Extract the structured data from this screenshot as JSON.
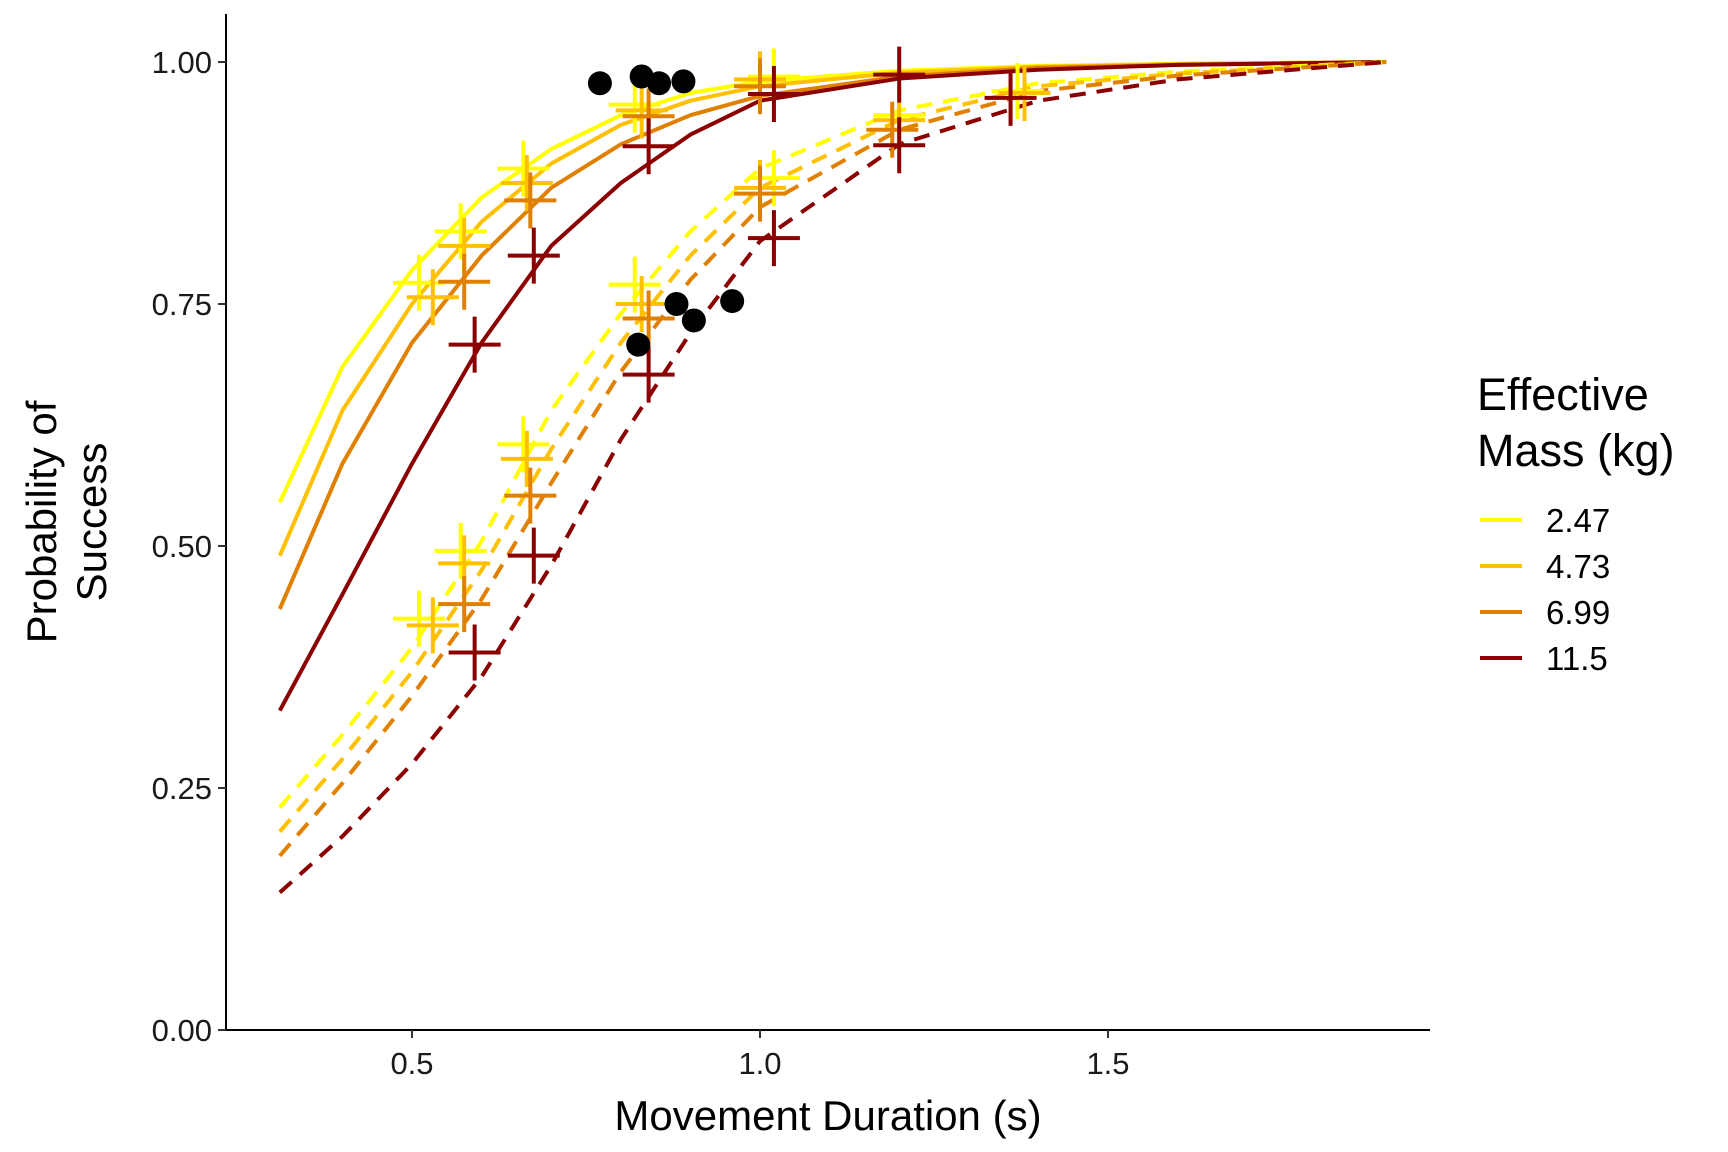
{
  "chart_data": {
    "type": "line",
    "xlabel": "Movement Duration (s)",
    "ylabel_lines": [
      "Probability of",
      "Success"
    ],
    "xlim": [
      0.235,
      1.9
    ],
    "ylim": [
      0.0,
      1.05
    ],
    "x_ticks": [
      0.5,
      1.0,
      1.5
    ],
    "x_tick_labels": [
      "0.5",
      "1.0",
      "1.5"
    ],
    "y_ticks": [
      0.0,
      0.25,
      0.5,
      0.75,
      1.0
    ],
    "y_tick_labels": [
      "0.00",
      "0.25",
      "0.50",
      "0.75",
      "1.00"
    ],
    "grid": false,
    "legend": {
      "title_lines": [
        "Effective",
        "Mass (kg)"
      ],
      "placement": "right",
      "entries": [
        {
          "label": "2.47",
          "color": "#FFFF00"
        },
        {
          "label": "4.73",
          "color": "#FFC000"
        },
        {
          "label": "6.99",
          "color": "#E08000"
        },
        {
          "label": "11.5",
          "color": "#8B0000"
        }
      ]
    },
    "series": [
      {
        "mass": "2.47",
        "style": "solid",
        "color": "#FFFF00",
        "x": [
          0.31,
          0.4,
          0.5,
          0.6,
          0.7,
          0.8,
          0.9,
          1.0,
          1.2,
          1.4,
          1.6,
          1.9
        ],
        "y": [
          0.545,
          0.685,
          0.785,
          0.86,
          0.91,
          0.945,
          0.968,
          0.98,
          0.991,
          0.996,
          0.998,
          1.0
        ]
      },
      {
        "mass": "4.73",
        "style": "solid",
        "color": "#FFC000",
        "x": [
          0.31,
          0.4,
          0.5,
          0.6,
          0.7,
          0.8,
          0.9,
          1.0,
          1.2,
          1.4,
          1.6,
          1.9
        ],
        "y": [
          0.49,
          0.64,
          0.75,
          0.835,
          0.895,
          0.935,
          0.96,
          0.975,
          0.989,
          0.995,
          0.998,
          1.0
        ]
      },
      {
        "mass": "6.99",
        "style": "solid",
        "color": "#E08000",
        "x": [
          0.31,
          0.4,
          0.5,
          0.6,
          0.7,
          0.8,
          0.9,
          1.0,
          1.2,
          1.4,
          1.6,
          1.9
        ],
        "y": [
          0.435,
          0.585,
          0.71,
          0.8,
          0.87,
          0.915,
          0.945,
          0.965,
          0.985,
          0.994,
          0.997,
          1.0
        ]
      },
      {
        "mass": "11.5",
        "style": "solid",
        "color": "#8B0000",
        "x": [
          0.31,
          0.4,
          0.5,
          0.6,
          0.7,
          0.8,
          0.9,
          1.0,
          1.2,
          1.4,
          1.6,
          1.9
        ],
        "y": [
          0.33,
          0.45,
          0.585,
          0.71,
          0.81,
          0.875,
          0.925,
          0.96,
          0.983,
          0.992,
          0.997,
          1.0
        ]
      },
      {
        "mass": "2.47",
        "style": "dashed",
        "color": "#FFFF00",
        "x": [
          0.31,
          0.4,
          0.5,
          0.6,
          0.7,
          0.8,
          0.9,
          1.0,
          1.2,
          1.4,
          1.6,
          1.9
        ],
        "y": [
          0.23,
          0.305,
          0.395,
          0.505,
          0.64,
          0.74,
          0.825,
          0.89,
          0.95,
          0.978,
          0.99,
          1.0
        ]
      },
      {
        "mass": "4.73",
        "style": "dashed",
        "color": "#FFC000",
        "x": [
          0.31,
          0.4,
          0.5,
          0.6,
          0.7,
          0.8,
          0.9,
          1.0,
          1.2,
          1.4,
          1.6,
          1.9
        ],
        "y": [
          0.205,
          0.28,
          0.37,
          0.475,
          0.6,
          0.71,
          0.8,
          0.87,
          0.94,
          0.975,
          0.988,
          1.0
        ]
      },
      {
        "mass": "6.99",
        "style": "dashed",
        "color": "#E08000",
        "x": [
          0.31,
          0.4,
          0.5,
          0.6,
          0.7,
          0.8,
          0.9,
          1.0,
          1.2,
          1.4,
          1.6,
          1.9
        ],
        "y": [
          0.18,
          0.255,
          0.345,
          0.445,
          0.565,
          0.68,
          0.775,
          0.85,
          0.93,
          0.97,
          0.986,
          1.0
        ]
      },
      {
        "mass": "11.5",
        "style": "dashed",
        "color": "#8B0000",
        "x": [
          0.31,
          0.4,
          0.5,
          0.6,
          0.7,
          0.8,
          0.9,
          1.0,
          1.2,
          1.4,
          1.6,
          1.9
        ],
        "y": [
          0.142,
          0.2,
          0.275,
          0.365,
          0.48,
          0.61,
          0.72,
          0.815,
          0.915,
          0.96,
          0.982,
          1.0
        ]
      }
    ],
    "crosses": [
      {
        "color": "#FFFF00",
        "x": [
          0.51,
          0.57,
          0.66,
          0.82,
          1.02,
          0.51,
          0.57,
          0.66,
          0.82,
          1.02,
          1.2,
          1.37
        ],
        "y": [
          0.772,
          0.825,
          0.89,
          0.956,
          0.985,
          0.425,
          0.495,
          0.605,
          0.77,
          0.88,
          0.945,
          0.97
        ]
      },
      {
        "color": "#FFC000",
        "x": [
          0.53,
          0.575,
          0.665,
          0.83,
          1.0,
          0.53,
          0.575,
          0.665,
          0.83,
          1.0,
          1.2,
          1.38
        ],
        "y": [
          0.757,
          0.81,
          0.875,
          0.95,
          0.982,
          0.418,
          0.482,
          0.59,
          0.75,
          0.87,
          0.94,
          0.968
        ]
      },
      {
        "color": "#E08000",
        "x": [
          0.575,
          0.67,
          0.84,
          1.0,
          0.575,
          0.67,
          0.84,
          1.0,
          1.19
        ],
        "y": [
          0.773,
          0.857,
          0.944,
          0.975,
          0.44,
          0.552,
          0.735,
          0.864,
          0.93
        ]
      },
      {
        "color": "#8B0000",
        "x": [
          0.59,
          0.675,
          0.84,
          1.02,
          1.2,
          0.59,
          0.675,
          0.84,
          1.02,
          1.2,
          1.36
        ],
        "y": [
          0.708,
          0.8,
          0.913,
          0.967,
          0.987,
          0.39,
          0.49,
          0.677,
          0.818,
          0.914,
          0.963
        ]
      }
    ],
    "points": {
      "color": "#000000",
      "x": [
        0.77,
        0.83,
        0.855,
        0.89,
        0.825,
        0.88,
        0.905,
        0.96
      ],
      "y": [
        0.978,
        0.985,
        0.978,
        0.98,
        0.708,
        0.75,
        0.733,
        0.753
      ]
    }
  }
}
